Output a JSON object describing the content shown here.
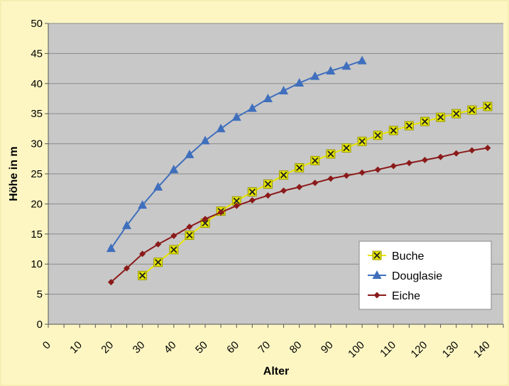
{
  "chart_data": {
    "type": "line",
    "title": "",
    "xlabel": "Alter",
    "ylabel": "Höhe in m",
    "xlim": [
      0,
      145
    ],
    "ylim": [
      0,
      50
    ],
    "xticks": [
      "0",
      "10",
      "20",
      "30",
      "40",
      "50",
      "60",
      "70",
      "80",
      "90",
      "100",
      "110",
      "120",
      "130",
      "140"
    ],
    "yticks": [
      "0",
      "5",
      "10",
      "15",
      "20",
      "25",
      "30",
      "35",
      "40",
      "45",
      "50"
    ],
    "grid": "horizontal",
    "legend_position": "bottom-right",
    "background": "#fdf6c3",
    "plot_background": "#c8c8c8",
    "series": [
      {
        "name": "Buche",
        "marker": "x",
        "color": "#e6e600",
        "x": [
          30,
          35,
          40,
          45,
          50,
          55,
          60,
          65,
          70,
          75,
          80,
          85,
          90,
          95,
          100,
          105,
          110,
          115,
          120,
          125,
          130,
          135,
          140
        ],
        "y": [
          8.1,
          10.3,
          12.4,
          14.8,
          16.8,
          18.8,
          20.5,
          22.0,
          23.3,
          24.8,
          26.0,
          27.2,
          28.3,
          29.3,
          30.4,
          31.4,
          32.2,
          33.0,
          33.7,
          34.4,
          35.0,
          35.6,
          36.2
        ]
      },
      {
        "name": "Douglasie",
        "marker": "triangle",
        "color": "#3f6fbd",
        "x": [
          20,
          25,
          30,
          35,
          40,
          45,
          50,
          55,
          60,
          65,
          70,
          75,
          80,
          85,
          90,
          95,
          100
        ],
        "y": [
          12.6,
          16.4,
          19.8,
          22.8,
          25.7,
          28.2,
          30.5,
          32.5,
          34.4,
          35.9,
          37.5,
          38.8,
          40.1,
          41.2,
          42.1,
          42.9,
          43.8
        ]
      },
      {
        "name": "Eiche",
        "marker": "diamond",
        "color": "#8b1a1a",
        "x": [
          20,
          25,
          30,
          35,
          40,
          45,
          50,
          55,
          60,
          65,
          70,
          75,
          80,
          85,
          90,
          95,
          100,
          105,
          110,
          115,
          120,
          125,
          130,
          135,
          140
        ],
        "y": [
          7.0,
          9.3,
          11.7,
          13.3,
          14.7,
          16.2,
          17.5,
          18.6,
          19.7,
          20.6,
          21.4,
          22.2,
          22.8,
          23.5,
          24.2,
          24.7,
          25.2,
          25.7,
          26.3,
          26.8,
          27.3,
          27.8,
          28.4,
          28.9,
          29.3
        ]
      }
    ]
  }
}
